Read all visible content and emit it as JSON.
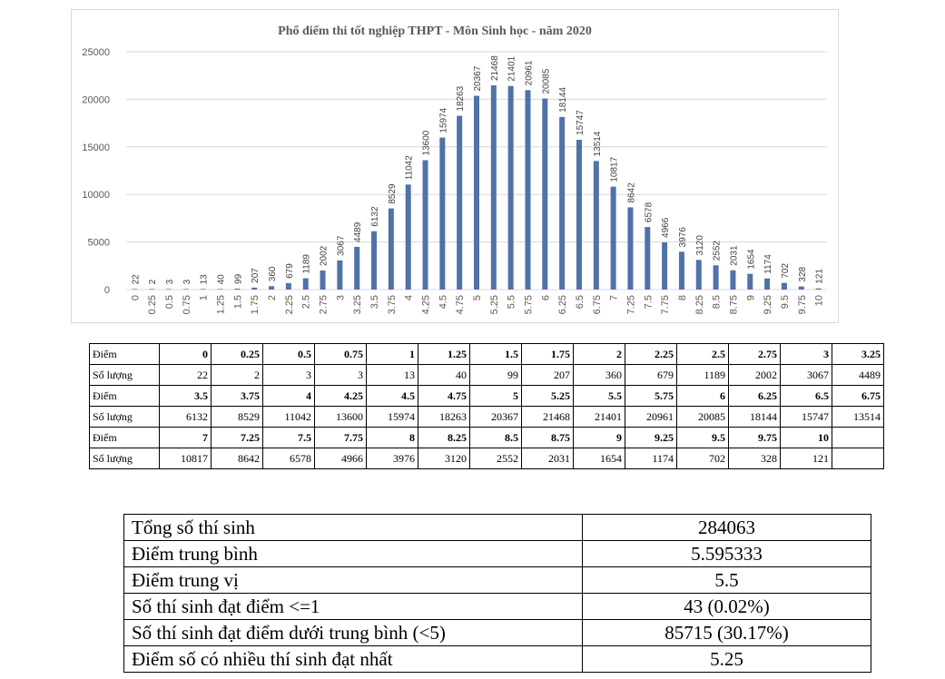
{
  "chart_data": {
    "type": "bar",
    "title": "Phổ điểm thi tốt nghiệp THPT - Môn Sinh học - năm 2020",
    "xlabel": "",
    "ylabel": "",
    "ylim": [
      0,
      25000
    ],
    "yticks": [
      0,
      5000,
      10000,
      15000,
      20000,
      25000
    ],
    "categories": [
      "0",
      "0.25",
      "0.5",
      "0.75",
      "1",
      "1.25",
      "1.5",
      "1.75",
      "2",
      "2.25",
      "2.5",
      "2.75",
      "3",
      "3.25",
      "3.5",
      "3.75",
      "4",
      "4.25",
      "4.5",
      "4.75",
      "5",
      "5.25",
      "5.5",
      "5.75",
      "6",
      "6.25",
      "6.5",
      "6.75",
      "7",
      "7.25",
      "7.5",
      "7.75",
      "8",
      "8.25",
      "8.5",
      "8.75",
      "9",
      "9.25",
      "9.5",
      "9.75",
      "10"
    ],
    "values": [
      22,
      2,
      3,
      3,
      13,
      40,
      99,
      207,
      360,
      679,
      1189,
      2002,
      3067,
      4489,
      6132,
      8529,
      11042,
      13600,
      15974,
      18263,
      20367,
      21468,
      21401,
      20961,
      20085,
      18144,
      15747,
      13514,
      10817,
      8642,
      6578,
      4966,
      3976,
      3120,
      2552,
      2031,
      1654,
      1174,
      702,
      328,
      121
    ],
    "bar_color": "#4f72a8",
    "grid": true
  },
  "table": {
    "score_label": "Điểm",
    "count_label": "Số lượng",
    "rows": [
      {
        "scores": [
          "0",
          "0.25",
          "0.5",
          "0.75",
          "1",
          "1.25",
          "1.5",
          "1.75",
          "2",
          "2.25",
          "2.5",
          "2.75",
          "3",
          "3.25"
        ],
        "counts": [
          "22",
          "2",
          "3",
          "3",
          "13",
          "40",
          "99",
          "207",
          "360",
          "679",
          "1189",
          "2002",
          "3067",
          "4489"
        ]
      },
      {
        "scores": [
          "3.5",
          "3.75",
          "4",
          "4.25",
          "4.5",
          "4.75",
          "5",
          "5.25",
          "5.5",
          "5.75",
          "6",
          "6.25",
          "6.5",
          "6.75"
        ],
        "counts": [
          "6132",
          "8529",
          "11042",
          "13600",
          "15974",
          "18263",
          "20367",
          "21468",
          "21401",
          "20961",
          "20085",
          "18144",
          "15747",
          "13514"
        ]
      },
      {
        "scores": [
          "7",
          "7.25",
          "7.5",
          "7.75",
          "8",
          "8.25",
          "8.5",
          "8.75",
          "9",
          "9.25",
          "9.5",
          "9.75",
          "10",
          ""
        ],
        "counts": [
          "10817",
          "8642",
          "6578",
          "4966",
          "3976",
          "3120",
          "2552",
          "2031",
          "1654",
          "1174",
          "702",
          "328",
          "121",
          ""
        ]
      }
    ]
  },
  "summary": [
    {
      "label": "Tổng số thí sinh",
      "value": "284063"
    },
    {
      "label": "Điểm trung bình",
      "value": "5.595333"
    },
    {
      "label": "Điểm trung vị",
      "value": "5.5"
    },
    {
      "label": "Số thí sinh đạt điểm <=1",
      "value": "43 (0.02%)"
    },
    {
      "label": "Số thí sinh đạt điểm dưới trung bình (<5)",
      "value": "85715 (30.17%)"
    },
    {
      "label": "Điểm số có nhiều thí sinh đạt nhất",
      "value": "5.25"
    }
  ]
}
